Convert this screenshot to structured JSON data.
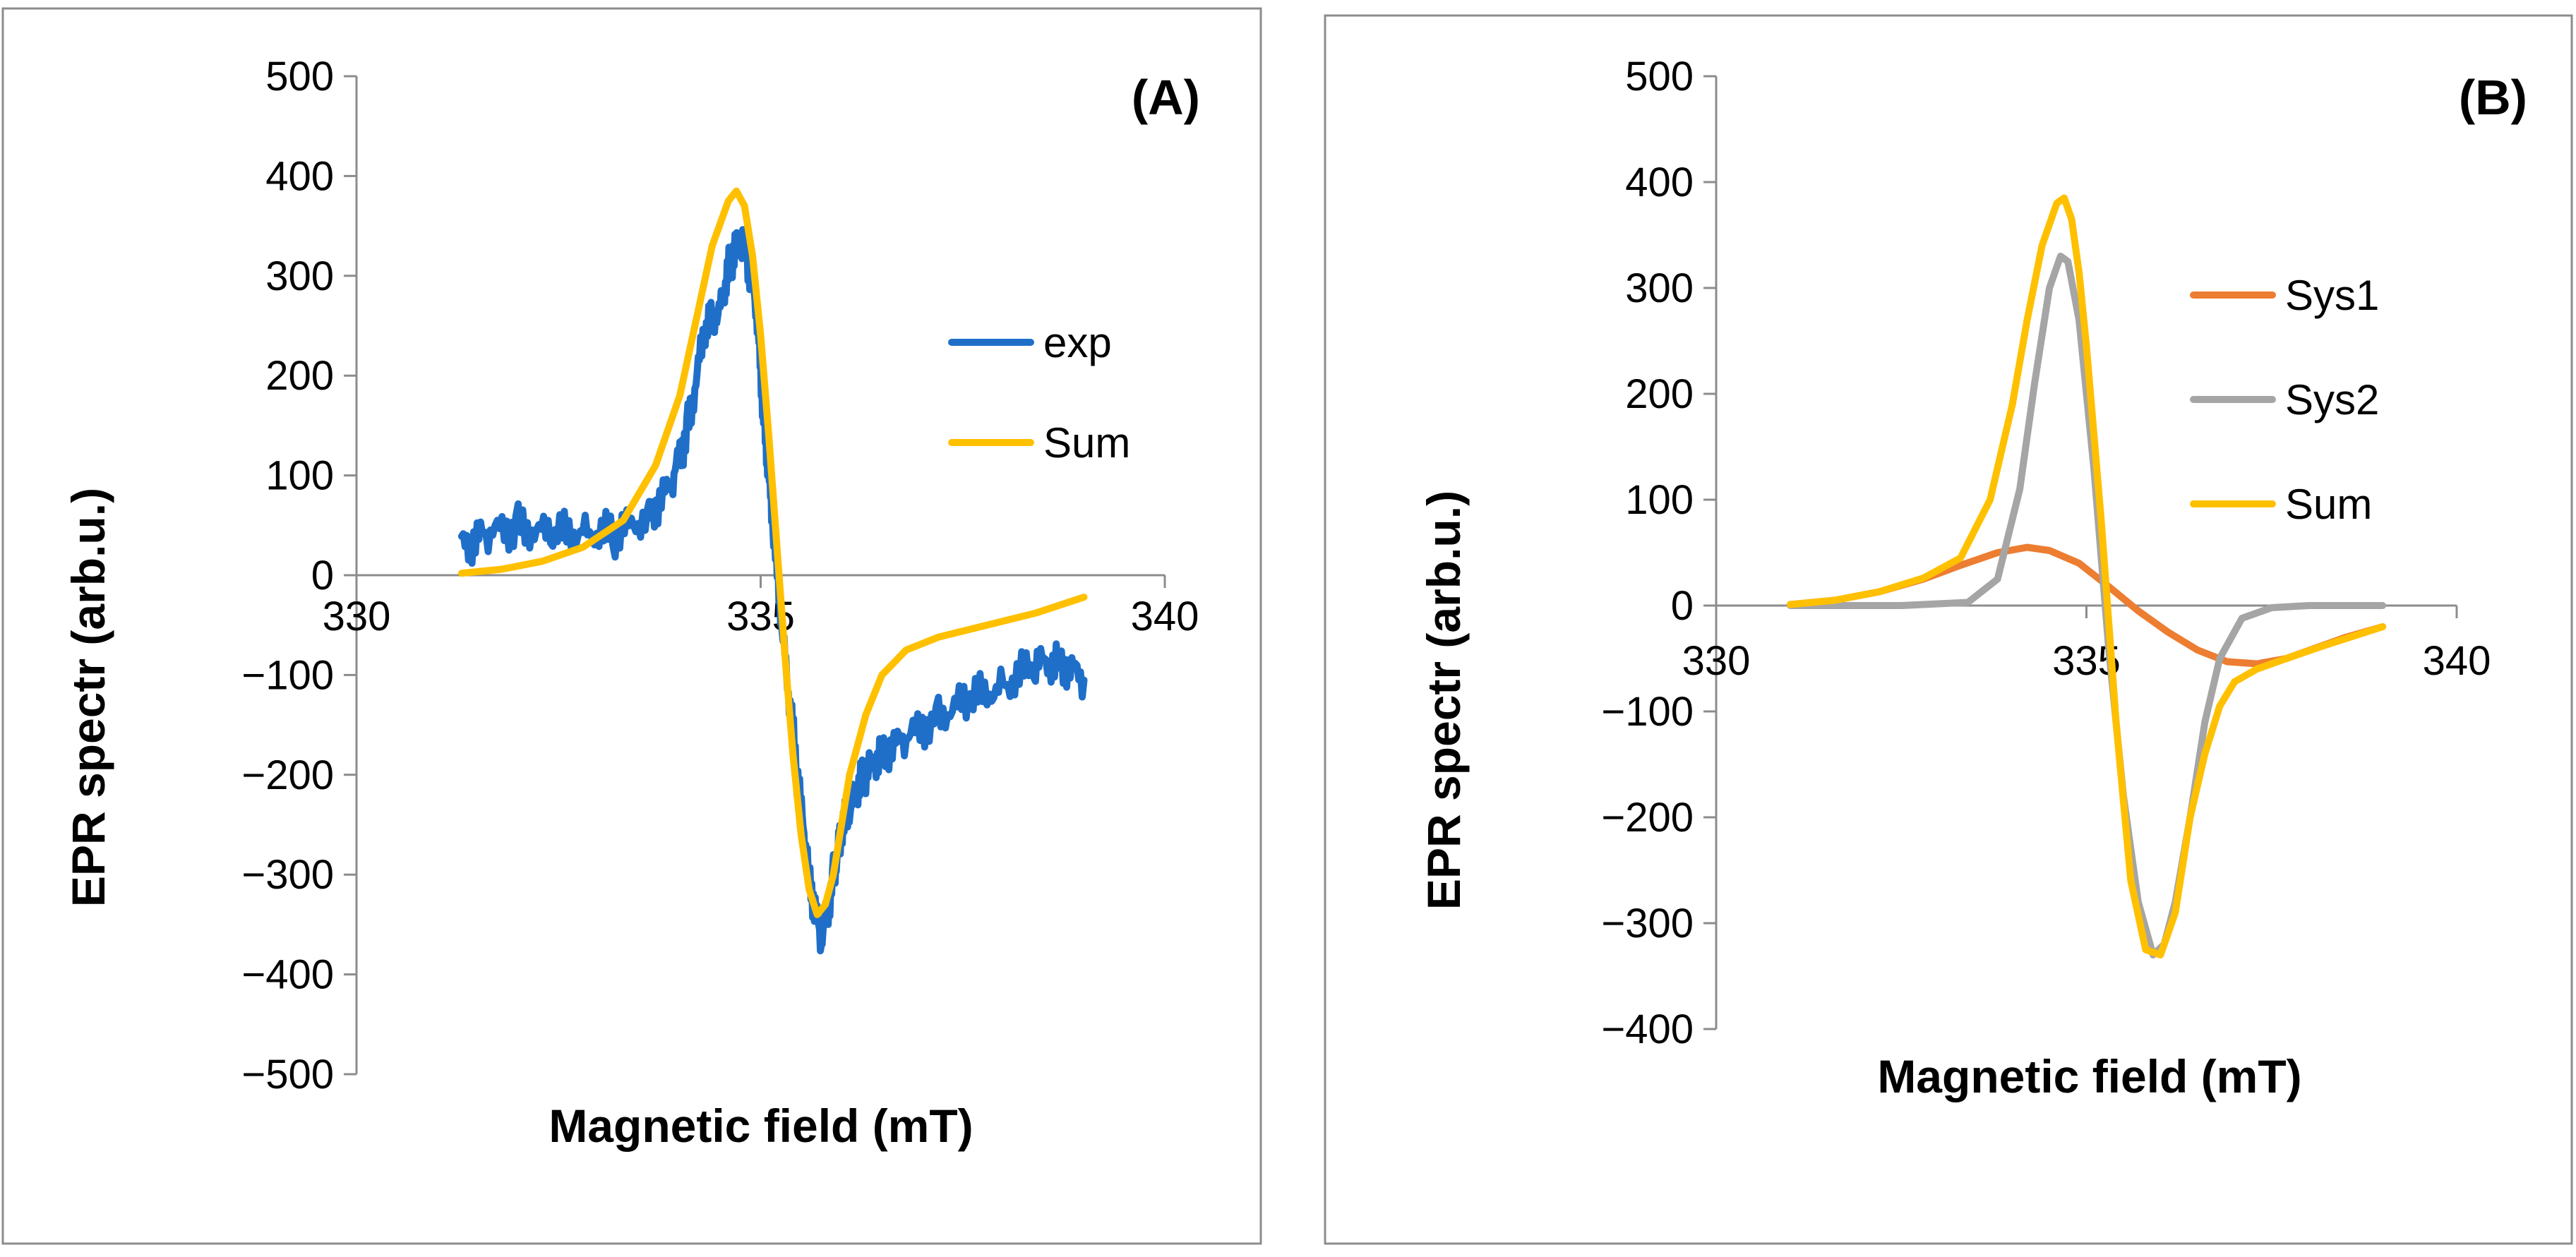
{
  "chart_data": [
    {
      "type": "line",
      "panel_label": "(A)",
      "xlabel": "Magnetic field (mT)",
      "ylabel": "EPR spectr (arb.u.)",
      "xlim": [
        330,
        340
      ],
      "ylim": [
        -500,
        500
      ],
      "xticks": [
        "330",
        "335",
        "340"
      ],
      "yticks": [
        "500",
        "400",
        "300",
        "200",
        "100",
        "0",
        "−100",
        "−200",
        "−300",
        "−400",
        "−500"
      ],
      "grid": false,
      "legend_position": "right",
      "series": [
        {
          "name": "exp",
          "color": "#1f6fc9",
          "x": [
            331.3,
            331.6,
            332.0,
            332.4,
            332.8,
            333.2,
            333.6,
            333.9,
            334.1,
            334.3,
            334.5,
            334.65,
            334.8,
            334.95,
            335.05,
            335.15,
            335.3,
            335.45,
            335.6,
            335.75,
            335.9,
            336.0,
            336.15,
            336.3,
            336.5,
            336.8,
            337.2,
            337.6,
            338.0,
            338.4,
            338.7,
            339.0
          ],
          "y": [
            30,
            40,
            50,
            40,
            45,
            40,
            60,
            90,
            150,
            240,
            270,
            320,
            340,
            260,
            150,
            50,
            -80,
            -200,
            -300,
            -370,
            -300,
            -260,
            -220,
            -200,
            -175,
            -165,
            -140,
            -125,
            -110,
            -90,
            -85,
            -105
          ]
        },
        {
          "name": "Sum",
          "color": "#ffc000",
          "x": [
            331.3,
            331.8,
            332.3,
            332.8,
            333.3,
            333.7,
            334.0,
            334.2,
            334.4,
            334.6,
            334.7,
            334.8,
            334.9,
            335.0,
            335.1,
            335.2,
            335.3,
            335.4,
            335.5,
            335.6,
            335.7,
            335.8,
            335.9,
            336.0,
            336.1,
            336.3,
            336.5,
            336.8,
            337.2,
            337.8,
            338.4,
            339.0
          ],
          "y": [
            2,
            6,
            14,
            28,
            55,
            110,
            180,
            255,
            330,
            375,
            385,
            370,
            320,
            240,
            140,
            30,
            -80,
            -180,
            -260,
            -315,
            -340,
            -330,
            -300,
            -250,
            -200,
            -140,
            -100,
            -75,
            -62,
            -50,
            -38,
            -22
          ]
        }
      ]
    },
    {
      "type": "line",
      "panel_label": "(B)",
      "xlabel": "Magnetic field (mT)",
      "ylabel": "EPR spectr (arb.u.)",
      "xlim": [
        330,
        340
      ],
      "ylim": [
        -400,
        500
      ],
      "xticks": [
        "330",
        "335",
        "340"
      ],
      "yticks": [
        "500",
        "400",
        "300",
        "200",
        "100",
        "0",
        "−100",
        "−200",
        "−300",
        "−400"
      ],
      "grid": false,
      "legend_position": "right",
      "series": [
        {
          "name": "Sys1",
          "color": "#ed7d31",
          "x": [
            331.0,
            331.6,
            332.2,
            332.8,
            333.3,
            333.8,
            334.2,
            334.5,
            334.9,
            335.3,
            335.7,
            336.1,
            336.5,
            336.9,
            337.3,
            337.7,
            338.1,
            338.5,
            339.0
          ],
          "y": [
            1,
            5,
            13,
            25,
            38,
            50,
            55,
            52,
            40,
            18,
            -5,
            -25,
            -42,
            -53,
            -55,
            -50,
            -40,
            -30,
            -20
          ]
        },
        {
          "name": "Sys2",
          "color": "#a5a5a5",
          "x": [
            331.0,
            332.5,
            333.4,
            333.8,
            334.1,
            334.3,
            334.5,
            334.65,
            334.75,
            334.9,
            335.1,
            335.3,
            335.5,
            335.7,
            335.9,
            336.05,
            336.2,
            336.4,
            336.6,
            336.8,
            337.1,
            337.5,
            338.0,
            339.0
          ],
          "y": [
            0,
            0,
            3,
            25,
            110,
            210,
            300,
            330,
            325,
            270,
            130,
            -40,
            -180,
            -280,
            -330,
            -320,
            -280,
            -200,
            -110,
            -50,
            -12,
            -2,
            0,
            0
          ]
        },
        {
          "name": "Sum",
          "color": "#ffc000",
          "x": [
            331.0,
            331.6,
            332.2,
            332.8,
            333.3,
            333.7,
            334.0,
            334.2,
            334.4,
            334.6,
            334.7,
            334.8,
            334.9,
            335.0,
            335.2,
            335.4,
            335.6,
            335.8,
            336.0,
            336.2,
            336.4,
            336.6,
            336.8,
            337.0,
            337.3,
            337.7,
            338.2,
            339.0
          ],
          "y": [
            1,
            5,
            13,
            26,
            45,
            100,
            190,
            270,
            340,
            380,
            385,
            365,
            315,
            245,
            80,
            -110,
            -260,
            -325,
            -330,
            -290,
            -200,
            -140,
            -95,
            -72,
            -60,
            -50,
            -38,
            -20
          ]
        }
      ]
    }
  ]
}
